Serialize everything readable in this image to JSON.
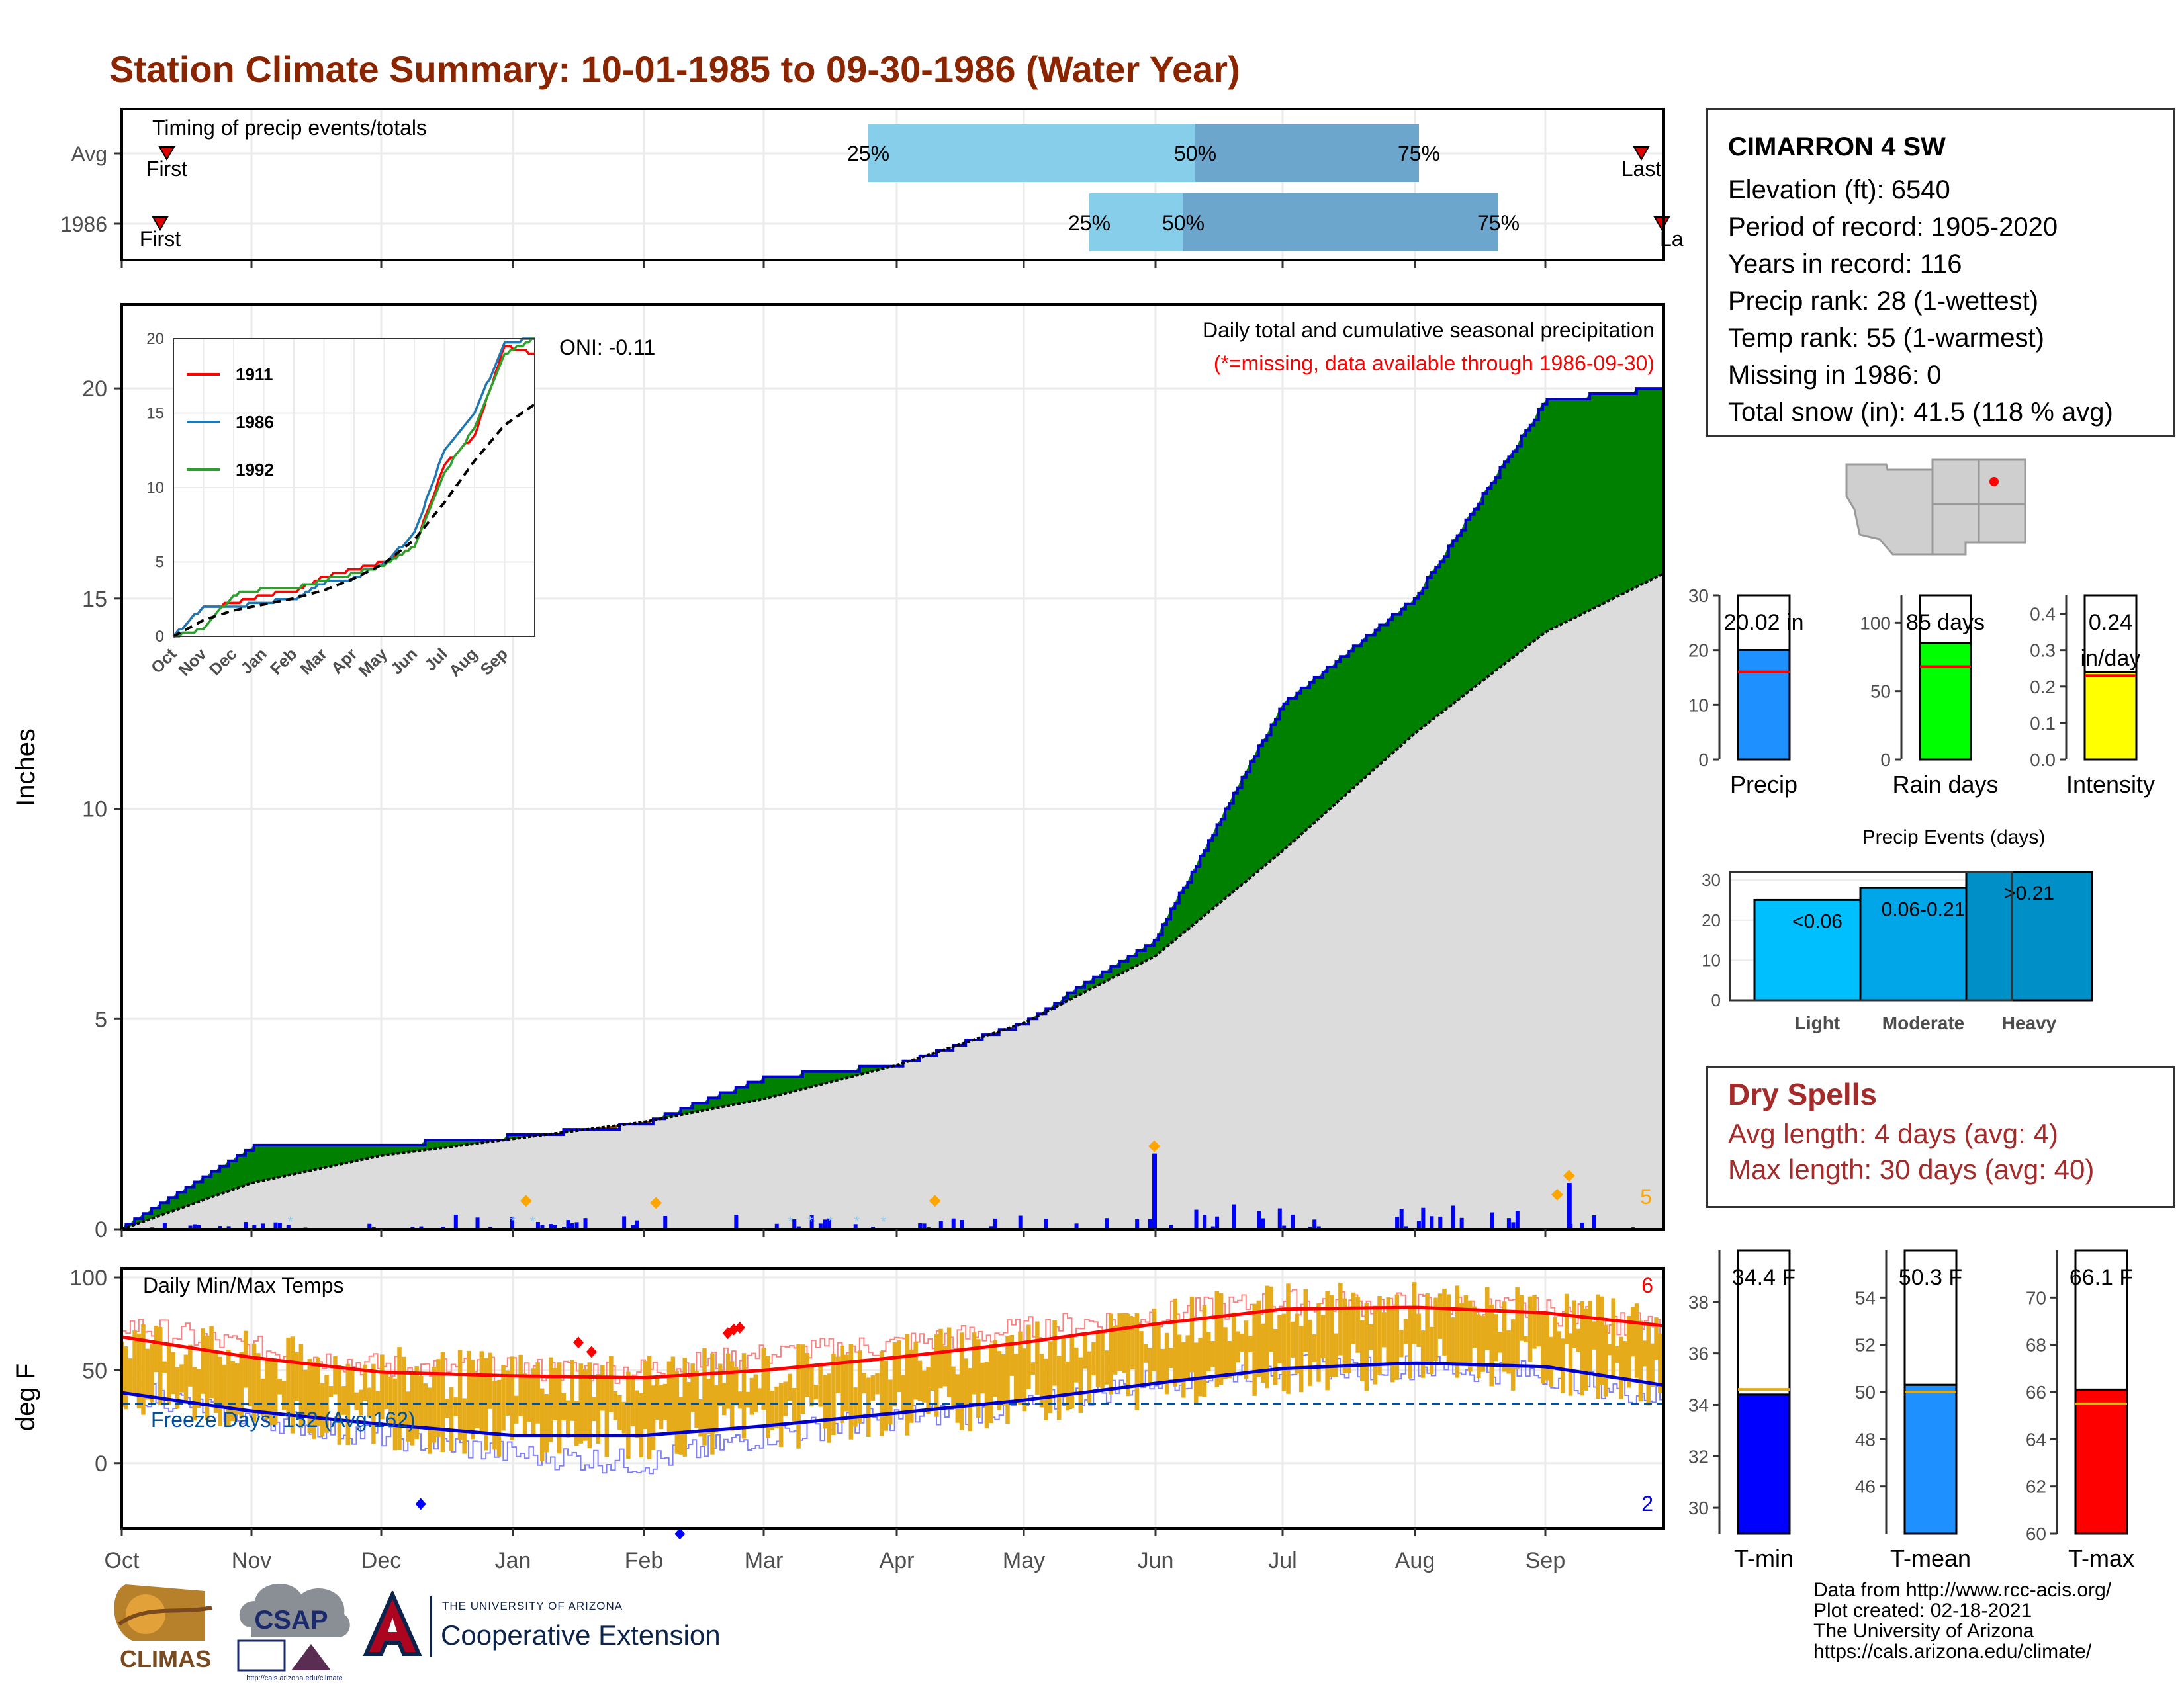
{
  "page": {
    "title": "Station Climate Summary: 10-01-1985 to 09-30-1986 (Water Year)"
  },
  "timing_panel": {
    "label": "Timing of precip events/totals",
    "rows": [
      "Avg",
      "1986"
    ],
    "first_label": "First",
    "last_label": "Last",
    "pct_labels": [
      "25%",
      "50%",
      "75%"
    ]
  },
  "station": {
    "name": "CIMARRON 4 SW",
    "lines": [
      "Elevation (ft): 6540",
      "Period of record: 1905-2020",
      "Years in record: 116",
      "Precip rank: 28 (1-wettest)",
      "Temp rank: 55 (1-warmest)",
      "Missing in 1986: 0",
      "Total snow (in): 41.5 (118 % avg)"
    ]
  },
  "main_panel": {
    "ylabel": "Inches",
    "oni": "ONI: -0.11",
    "caption": "Daily total and cumulative seasonal precipitation",
    "missing_note": "(*=missing, data available through 1986-09-30)",
    "corner_count": "5"
  },
  "temp_panel": {
    "ylabel": "deg F",
    "label": "Daily Min/Max Temps",
    "freeze": "Freeze Days: 152 (Avg:162)",
    "hot_count": "6",
    "cold_count": "2"
  },
  "x_months": [
    "Oct",
    "Nov",
    "Dec",
    "Jan",
    "Feb",
    "Mar",
    "Apr",
    "May",
    "Jun",
    "Jul",
    "Aug",
    "Sep"
  ],
  "summary_bars": {
    "precip": {
      "label": "Precip",
      "box": "20.02 in"
    },
    "rain_days": {
      "label": "Rain days",
      "box": "85 days"
    },
    "intensity": {
      "label": "Intensity",
      "box_line1": "0.24",
      "box_line2": "in/day"
    }
  },
  "precip_events": {
    "title": "Precip Events (days)",
    "labels": [
      "Light",
      "Moderate",
      "Heavy"
    ],
    "bar_text": [
      "<0.06",
      "0.06-0.21",
      ">0.21"
    ]
  },
  "dry_spells": {
    "title": "Dry Spells",
    "line1": "Avg length: 4 days (avg: 4)",
    "line2": "Max length: 30 days (avg: 40)"
  },
  "temp_bars": {
    "tmin": {
      "label": "T-min",
      "box": "34.4 F"
    },
    "tmean": {
      "label": "T-mean",
      "box": "50.3 F"
    },
    "tmax": {
      "label": "T-max",
      "box": "66.1 F"
    }
  },
  "footer": {
    "lines": [
      "Data from http://www.rcc-acis.org/",
      "Plot created: 02-18-2021",
      "The University of Arizona",
      "https://cals.arizona.edu/climate/"
    ]
  },
  "logos": {
    "climas": "CLIMAS",
    "csap": "CSAP",
    "csap_url": "http://cals.arizona.edu/climate",
    "ua_small": "THE UNIVERSITY OF ARIZONA",
    "ua_big": "Cooperative Extension"
  },
  "colors": {
    "title": "#8B2500",
    "observed_outline": "#0000CC",
    "above_avg": "#008000",
    "below_avg": "#7B4A0A",
    "avg_fill": "#DCDCDC",
    "tmax_line": "#FF0000",
    "tmin_line": "#0000CC",
    "temp_bar": "#E6AB1A",
    "timing_light": "#87CEEB",
    "timing_dark": "#6CA6CD"
  },
  "chart_data": [
    {
      "type": "area",
      "title": "Daily total and cumulative seasonal precipitation",
      "ylabel": "Inches",
      "ylim": [
        0,
        22
      ],
      "x": [
        "Oct",
        "Nov",
        "Dec",
        "Jan",
        "Feb",
        "Mar",
        "Apr",
        "May",
        "Jun",
        "Jul",
        "Aug",
        "Sep",
        "Sep-30"
      ],
      "series": [
        {
          "values": [
            0.0,
            1.95,
            2.0,
            2.2,
            2.5,
            3.6,
            3.9,
            4.9,
            6.9,
            12.5,
            15.0,
            19.7,
            20.02
          ]
        },
        {
          "values": [
            0.0,
            1.1,
            1.75,
            2.15,
            2.55,
            3.1,
            3.9,
            4.9,
            6.5,
            9.0,
            11.8,
            14.2,
            15.6
          ]
        }
      ],
      "daily_precip_peaks": [
        {
          "x": "May-31",
          "value": 1.8
        },
        {
          "x": "Sep-07",
          "value": 1.1
        }
      ]
    },
    {
      "type": "line",
      "title": "",
      "ylim": [
        0,
        20
      ],
      "x": [
        "Oct",
        "Nov",
        "Dec",
        "Jan",
        "Feb",
        "Mar",
        "Apr",
        "May",
        "Jun",
        "Jul",
        "Aug",
        "Sep",
        "Sep-30"
      ],
      "series": [
        {
          "name": "1911",
          "values": [
            0,
            2.0,
            2.2,
            2.8,
            3.0,
            4.0,
            4.5,
            5.0,
            6.0,
            11.5,
            13.5,
            19.5,
            19.0
          ]
        },
        {
          "name": "1986",
          "values": [
            0,
            2.0,
            2.0,
            2.3,
            2.5,
            3.6,
            3.9,
            4.9,
            6.9,
            12.5,
            15.0,
            19.7,
            20.02
          ]
        },
        {
          "name": "1992",
          "values": [
            0,
            0.5,
            2.8,
            3.2,
            3.2,
            3.8,
            4.2,
            4.8,
            6.0,
            11.0,
            14.0,
            19.0,
            20.0
          ]
        },
        {
          "values": [
            0,
            1.1,
            1.75,
            2.15,
            2.55,
            3.1,
            3.9,
            4.9,
            6.5,
            9.0,
            11.8,
            14.2,
            15.6
          ]
        }
      ]
    },
    {
      "type": "line",
      "title": "Daily Min/Max Temps",
      "ylabel": "deg F",
      "ylim": [
        -35,
        105
      ],
      "x": [
        "Oct",
        "Nov",
        "Dec",
        "Jan",
        "Feb",
        "Mar",
        "Apr",
        "May",
        "Jun",
        "Jul",
        "Aug",
        "Sep",
        "Sep-30"
      ],
      "series": [
        {
          "values": [
            68,
            57,
            49,
            47,
            46,
            50,
            57,
            65,
            75,
            83,
            84,
            81,
            74
          ]
        },
        {
          "values": [
            38,
            28,
            21,
            15,
            15,
            20,
            27,
            34,
            43,
            51,
            54,
            52,
            42
          ]
        },
        {
          "values": [
            75,
            62,
            52,
            50,
            50,
            58,
            64,
            72,
            80,
            87,
            85,
            82,
            72
          ]
        },
        {
          "values": [
            40,
            25,
            15,
            5,
            0,
            15,
            25,
            30,
            45,
            52,
            52,
            48,
            35
          ]
        }
      ],
      "freeze_line": 32
    },
    {
      "type": "bar",
      "title": "",
      "categories": [
        "Precip"
      ],
      "values": [
        20.02
      ],
      "average": 16.0,
      "ylim": [
        0,
        30
      ]
    },
    {
      "type": "bar",
      "title": "",
      "categories": [
        "Rain days"
      ],
      "values": [
        85
      ],
      "average": 68,
      "ylim": [
        0,
        120
      ]
    },
    {
      "type": "bar",
      "title": "",
      "categories": [
        "Intensity"
      ],
      "values": [
        0.24
      ],
      "average": 0.23,
      "ylim": [
        0,
        0.45
      ]
    },
    {
      "type": "bar",
      "title": "Precip Events (days)",
      "categories": [
        "Light",
        "Moderate",
        "Heavy"
      ],
      "values": [
        25,
        28,
        32
      ],
      "ylim": [
        0,
        32
      ]
    },
    {
      "type": "bar",
      "title": "",
      "categories": [
        "T-min"
      ],
      "values": [
        34.4
      ],
      "average": 34.6,
      "ylim": [
        29,
        40
      ]
    },
    {
      "type": "bar",
      "title": "",
      "categories": [
        "T-mean"
      ],
      "values": [
        50.3
      ],
      "average": 50.0,
      "ylim": [
        44,
        56
      ]
    },
    {
      "type": "bar",
      "title": "",
      "categories": [
        "T-max"
      ],
      "values": [
        66.1
      ],
      "average": 65.5,
      "ylim": [
        60,
        72
      ]
    }
  ]
}
